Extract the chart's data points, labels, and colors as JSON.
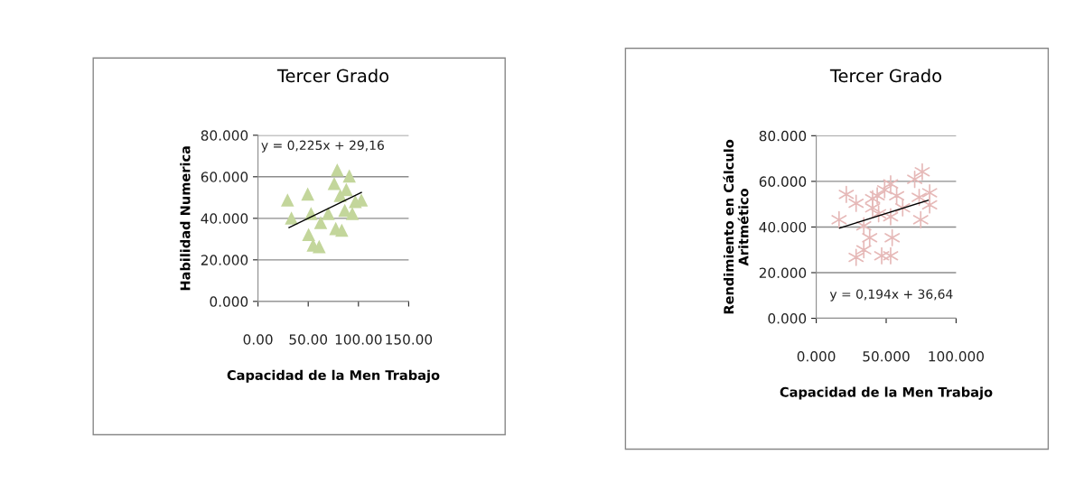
{
  "chart_data": [
    {
      "type": "scatter",
      "title": "Tercer Grado",
      "xlabel": "Capacidad de la Men Trabajo",
      "ylabel": "Habilidad Numerica",
      "xlim": [
        0,
        150
      ],
      "xticks": [
        {
          "value": 0,
          "label": "0.00"
        },
        {
          "value": 50,
          "label": "50.00"
        },
        {
          "value": 100,
          "label": "100.00"
        },
        {
          "value": 150,
          "label": "150.00"
        }
      ],
      "ylim": [
        0,
        80
      ],
      "yticks": [
        {
          "value": 0,
          "label": "0.000"
        },
        {
          "value": 20,
          "label": "20.000"
        },
        {
          "value": 40,
          "label": "40.000"
        },
        {
          "value": 60,
          "label": "60.000"
        },
        {
          "value": 80,
          "label": "80.000"
        }
      ],
      "grid": "y",
      "legend": false,
      "annotations": [
        "y = 0,225x + 29,16"
      ],
      "series": [
        {
          "marker": "triangle",
          "color": "#c3d69b",
          "x": [
            29.4,
            33.3,
            49.5,
            52.8,
            50.4,
            54.9,
            60.9,
            62.4,
            69.9,
            78.9,
            75.9,
            81.9,
            90.9,
            87.9,
            86.4,
            77.4,
            83.4,
            96.9,
            102.9,
            93.9
          ],
          "values": [
            48.8,
            40.1,
            51.7,
            42.3,
            32.2,
            27.1,
            26.4,
            38,
            42.3,
            63.3,
            56.8,
            51,
            60.4,
            53.9,
            43.8,
            35.1,
            34.3,
            48.1,
            48.8,
            42.3
          ]
        },
        {
          "type": "line",
          "marker": "none",
          "color": "#000000",
          "x": [
            30.9,
            102.9
          ],
          "values": [
            35.5,
            52.5
          ]
        }
      ]
    },
    {
      "type": "scatter",
      "title": "Tercer Grado",
      "xlabel": "Capacidad de la Men Trabajo",
      "ylabel": "Rendimiento en Cálculo\nAritmético",
      "xlim": [
        0,
        100
      ],
      "xticks": [
        {
          "value": 0,
          "label": "0.000"
        },
        {
          "value": 50,
          "label": "50.000"
        },
        {
          "value": 100,
          "label": "100.000"
        }
      ],
      "ylim": [
        0,
        80
      ],
      "yticks": [
        {
          "value": 0,
          "label": "0.000"
        },
        {
          "value": 20,
          "label": "20.000"
        },
        {
          "value": 40,
          "label": "40.000"
        },
        {
          "value": 60,
          "label": "60.000"
        },
        {
          "value": 80,
          "label": "80.000"
        }
      ],
      "grid": "y",
      "legend": false,
      "annotations": [
        "y = 0,194x + 36,64"
      ],
      "series": [
        {
          "marker": "cross",
          "color": "#e6b9b8",
          "x": [
            21.5,
            16.3,
            28.5,
            28.5,
            34,
            38.2,
            40.3,
            40.3,
            43.6,
            44.6,
            46.8,
            48.9,
            53.2,
            57.5,
            53.2,
            54.3,
            53.2,
            61.8,
            70.4,
            75.8,
            73.6,
            81.1,
            81.1,
            74.7,
            34
          ],
          "values": [
            54.3,
            43.2,
            26.7,
            50.4,
            40.5,
            35.3,
            48.4,
            52.4,
            53.7,
            45.8,
            27.4,
            56.3,
            58.9,
            53.7,
            44.5,
            35.3,
            27.4,
            48.4,
            60.9,
            64.2,
            53,
            55,
            49.7,
            43.2,
            30
          ]
        },
        {
          "type": "line",
          "marker": "none",
          "color": "#000000",
          "x": [
            16.7,
            80
          ],
          "values": [
            39.5,
            51.7
          ]
        }
      ]
    }
  ]
}
